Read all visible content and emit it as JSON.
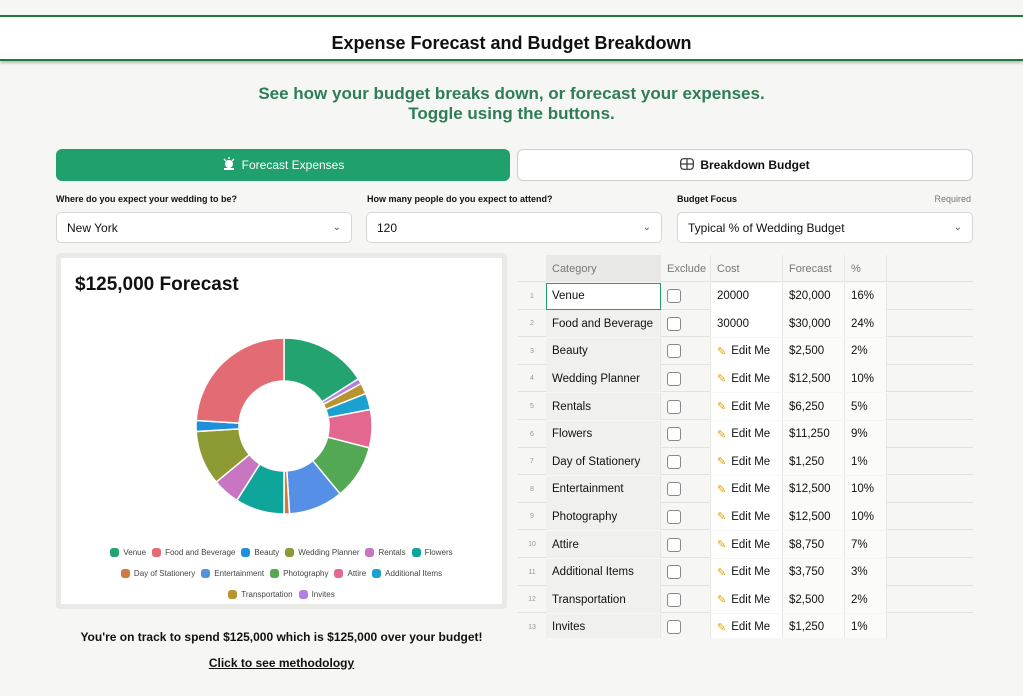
{
  "header": {
    "title": "Expense Forecast and Budget Breakdown"
  },
  "intro": {
    "line1": "See how your budget breaks down, or forecast your expenses.",
    "line2": "Toggle using the buttons."
  },
  "toggles": {
    "forecast": "Forecast Expenses",
    "breakdown": "Breakdown Budget"
  },
  "form": {
    "location_label": "Where do you expect your wedding to be?",
    "location_value": "New York",
    "guests_label": "How many people do you expect to attend?",
    "guests_value": "120",
    "focus_label": "Budget Focus",
    "focus_required": "Required",
    "focus_value": "Typical % of Wedding Budget"
  },
  "chart": {
    "title": "$125,000 Forecast"
  },
  "chart_data": {
    "type": "pie",
    "title": "$125,000 Forecast",
    "categories": [
      "Venue",
      "Food and Beverage",
      "Beauty",
      "Wedding Planner",
      "Rentals",
      "Flowers",
      "Day of Stationery",
      "Entertainment",
      "Photography",
      "Attire",
      "Additional Items",
      "Transportation",
      "Invites"
    ],
    "values": [
      20000,
      30000,
      2500,
      12500,
      6250,
      11250,
      1250,
      12500,
      12500,
      8750,
      3750,
      2500,
      1250
    ],
    "order_clockwise_from_top": [
      "Venue",
      "Invites",
      "Transportation",
      "Additional Items",
      "Attire",
      "Photography",
      "Entertainment",
      "Day of Stationery",
      "Flowers",
      "Rentals",
      "Wedding Planner",
      "Beauty",
      "Food and Beverage"
    ],
    "colors": {
      "Venue": "#22a36f",
      "Food and Beverage": "#e36b73",
      "Beauty": "#1f8fdb",
      "Wedding Planner": "#8e9a34",
      "Rentals": "#c976c2",
      "Flowers": "#0fa59a",
      "Day of Stationery": "#d27a3d",
      "Entertainment": "#5590e6",
      "Photography": "#52a853",
      "Attire": "#e4678f",
      "Additional Items": "#1ba1cf",
      "Transportation": "#b8942e",
      "Invites": "#b57ee0"
    },
    "legend_position": "bottom"
  },
  "table": {
    "headers": [
      "Category",
      "Exclude",
      "Cost",
      "Forecast",
      "%"
    ],
    "rows": [
      {
        "n": "1",
        "cat": "Venue",
        "cost": "20000",
        "fc": "$20,000",
        "pct": "16%",
        "edit": false
      },
      {
        "n": "2",
        "cat": "Food and Beverage",
        "cost": "30000",
        "fc": "$30,000",
        "pct": "24%",
        "edit": false
      },
      {
        "n": "3",
        "cat": "Beauty",
        "cost": "Edit Me",
        "fc": "$2,500",
        "pct": "2%",
        "edit": true
      },
      {
        "n": "4",
        "cat": "Wedding Planner",
        "cost": "Edit Me",
        "fc": "$12,500",
        "pct": "10%",
        "edit": true
      },
      {
        "n": "5",
        "cat": "Rentals",
        "cost": "Edit Me",
        "fc": "$6,250",
        "pct": "5%",
        "edit": true
      },
      {
        "n": "6",
        "cat": "Flowers",
        "cost": "Edit Me",
        "fc": "$11,250",
        "pct": "9%",
        "edit": true
      },
      {
        "n": "7",
        "cat": "Day of Stationery",
        "cost": "Edit Me",
        "fc": "$1,250",
        "pct": "1%",
        "edit": true
      },
      {
        "n": "8",
        "cat": "Entertainment",
        "cost": "Edit Me",
        "fc": "$12,500",
        "pct": "10%",
        "edit": true
      },
      {
        "n": "9",
        "cat": "Photography",
        "cost": "Edit Me",
        "fc": "$12,500",
        "pct": "10%",
        "edit": true
      },
      {
        "n": "10",
        "cat": "Attire",
        "cost": "Edit Me",
        "fc": "$8,750",
        "pct": "7%",
        "edit": true
      },
      {
        "n": "11",
        "cat": "Additional Items",
        "cost": "Edit Me",
        "fc": "$3,750",
        "pct": "3%",
        "edit": true
      },
      {
        "n": "12",
        "cat": "Transportation",
        "cost": "Edit Me",
        "fc": "$2,500",
        "pct": "2%",
        "edit": true
      },
      {
        "n": "13",
        "cat": "Invites",
        "cost": "Edit Me",
        "fc": "$1,250",
        "pct": "1%",
        "edit": true
      }
    ]
  },
  "summary": {
    "track": "You're on track to spend $125,000 which is $125,000 over your budget!",
    "methodology": "Click to see methodology"
  }
}
